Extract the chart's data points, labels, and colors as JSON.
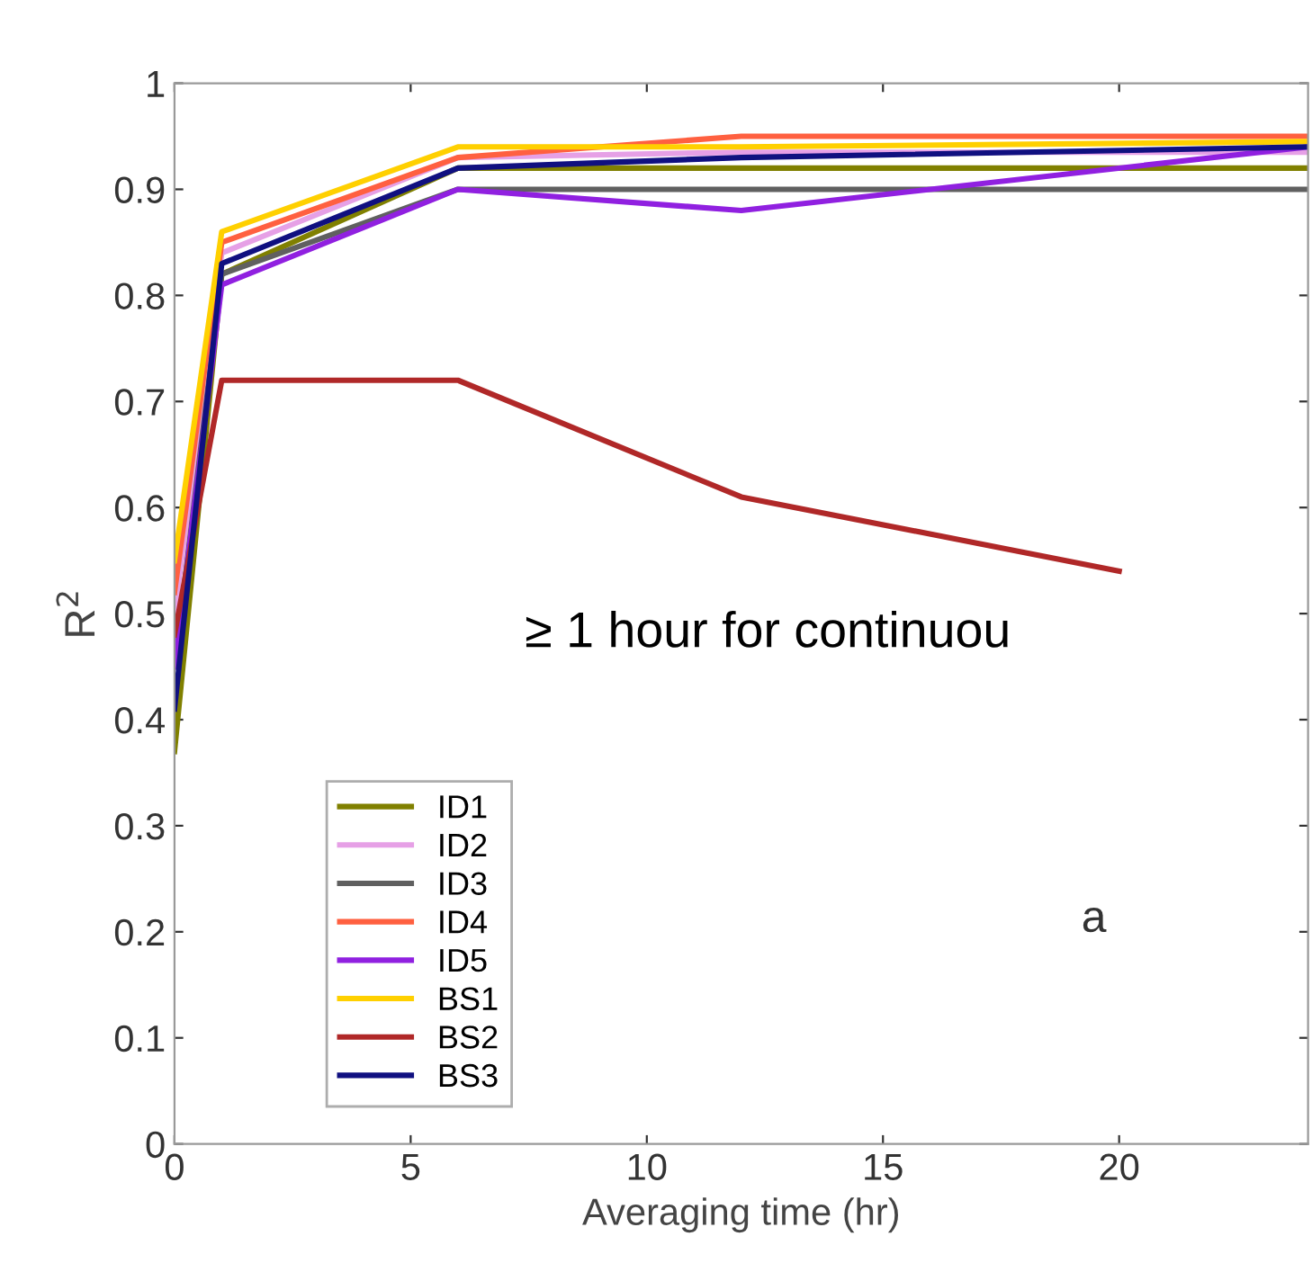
{
  "chart_data": {
    "type": "line",
    "xlabel": "Averaging time (hr)",
    "ylabel": "R$^{2}$",
    "x": [
      0,
      1,
      6,
      12,
      24
    ],
    "xlim": [
      0,
      24
    ],
    "xticks": [
      0,
      5,
      10,
      15,
      20
    ],
    "ylim": [
      0,
      1
    ],
    "yticks": [
      0,
      0.1,
      0.2,
      0.3,
      0.4,
      0.5,
      0.6,
      0.7,
      0.8,
      0.9,
      1
    ],
    "grid": false,
    "legend": "bottom left",
    "marker": "none",
    "line_style": "solid",
    "annotations": [
      "≥ 1 hour for continuou",
      "a"
    ],
    "series": [
      {
        "name": "ID1",
        "color": "#808000",
        "values": [
          0.37,
          0.82,
          0.92,
          0.92,
          0.92
        ]
      },
      {
        "name": "ID2",
        "color": "#e6a0e6",
        "values": [
          0.5,
          0.84,
          0.93,
          0.935,
          0.935
        ]
      },
      {
        "name": "ID3",
        "color": "#606060",
        "values": [
          0.45,
          0.82,
          0.9,
          0.9,
          0.9
        ]
      },
      {
        "name": "ID4",
        "color": "#ff6040",
        "values": [
          0.52,
          0.85,
          0.93,
          0.95,
          0.95
        ]
      },
      {
        "name": "ID5",
        "color": "#9020e0",
        "values": [
          0.45,
          0.81,
          0.9,
          0.88,
          0.94
        ]
      },
      {
        "name": "BS1",
        "color": "#ffd000",
        "values": [
          0.55,
          0.86,
          0.94,
          0.94,
          0.945
        ]
      },
      {
        "name": "BS2",
        "color": "#b02828",
        "x": [
          0,
          1,
          6,
          12,
          20
        ],
        "values": [
          0.48,
          0.72,
          0.72,
          0.61,
          0.54
        ]
      },
      {
        "name": "BS3",
        "color": "#101080",
        "values": [
          0.41,
          0.83,
          0.92,
          0.93,
          0.94
        ]
      }
    ]
  }
}
